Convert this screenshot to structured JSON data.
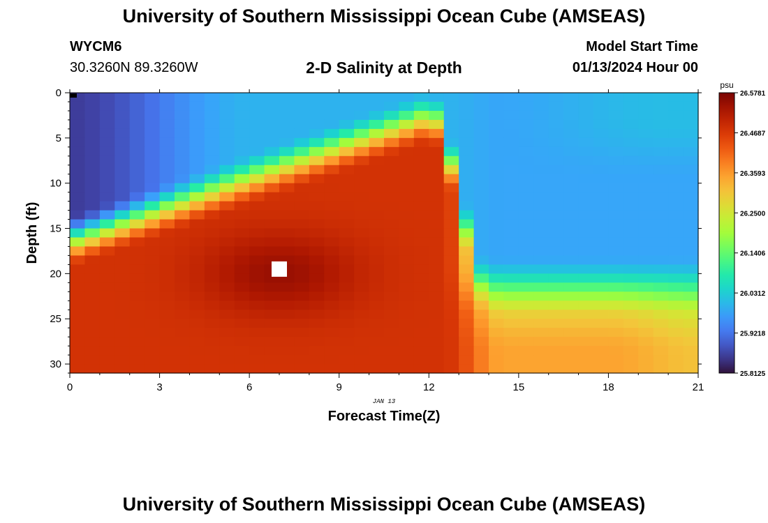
{
  "header": {
    "title": "University of Southern Mississippi Ocean Cube (AMSEAS)",
    "station_id": "WYCM6",
    "coordinates": "30.3260N  89.3260W",
    "chart_title": "2-D Salinity at Depth",
    "model_start_label": "Model Start Time",
    "model_start_value": "01/13/2024 Hour 00"
  },
  "footer": {
    "title": "University of Southern Mississippi Ocean Cube (AMSEAS)"
  },
  "chart_data": {
    "type": "heatmap",
    "title": "2-D Salinity at Depth",
    "xlabel": "Forecast Time(Z)",
    "ylabel": "Depth (ft)",
    "date_label": "JAN 13",
    "xlim": [
      0,
      21
    ],
    "ylim": [
      0,
      31
    ],
    "x_ticks": [
      0,
      3,
      6,
      9,
      12,
      15,
      18,
      21
    ],
    "y_ticks": [
      0,
      5,
      10,
      15,
      20,
      25,
      30
    ],
    "colorbar": {
      "unit": "psu",
      "min": 25.8125,
      "max": 26.5781,
      "tick_labels": [
        "26.5781",
        "26.4687",
        "26.3593",
        "26.2500",
        "26.1406",
        "26.0312",
        "25.9218",
        "25.8125"
      ]
    },
    "marker": {
      "x": 7,
      "y": 19.5,
      "color": "#ffffff"
    },
    "colors": [
      "#30123b",
      "#4145ab",
      "#4675ed",
      "#39a2fc",
      "#1bcfd4",
      "#24eca6",
      "#61fc6c",
      "#a4fc3b",
      "#d1e834",
      "#f3c63a",
      "#fe9b2d",
      "#f36315",
      "#d93806",
      "#b11901",
      "#7a0403"
    ]
  }
}
